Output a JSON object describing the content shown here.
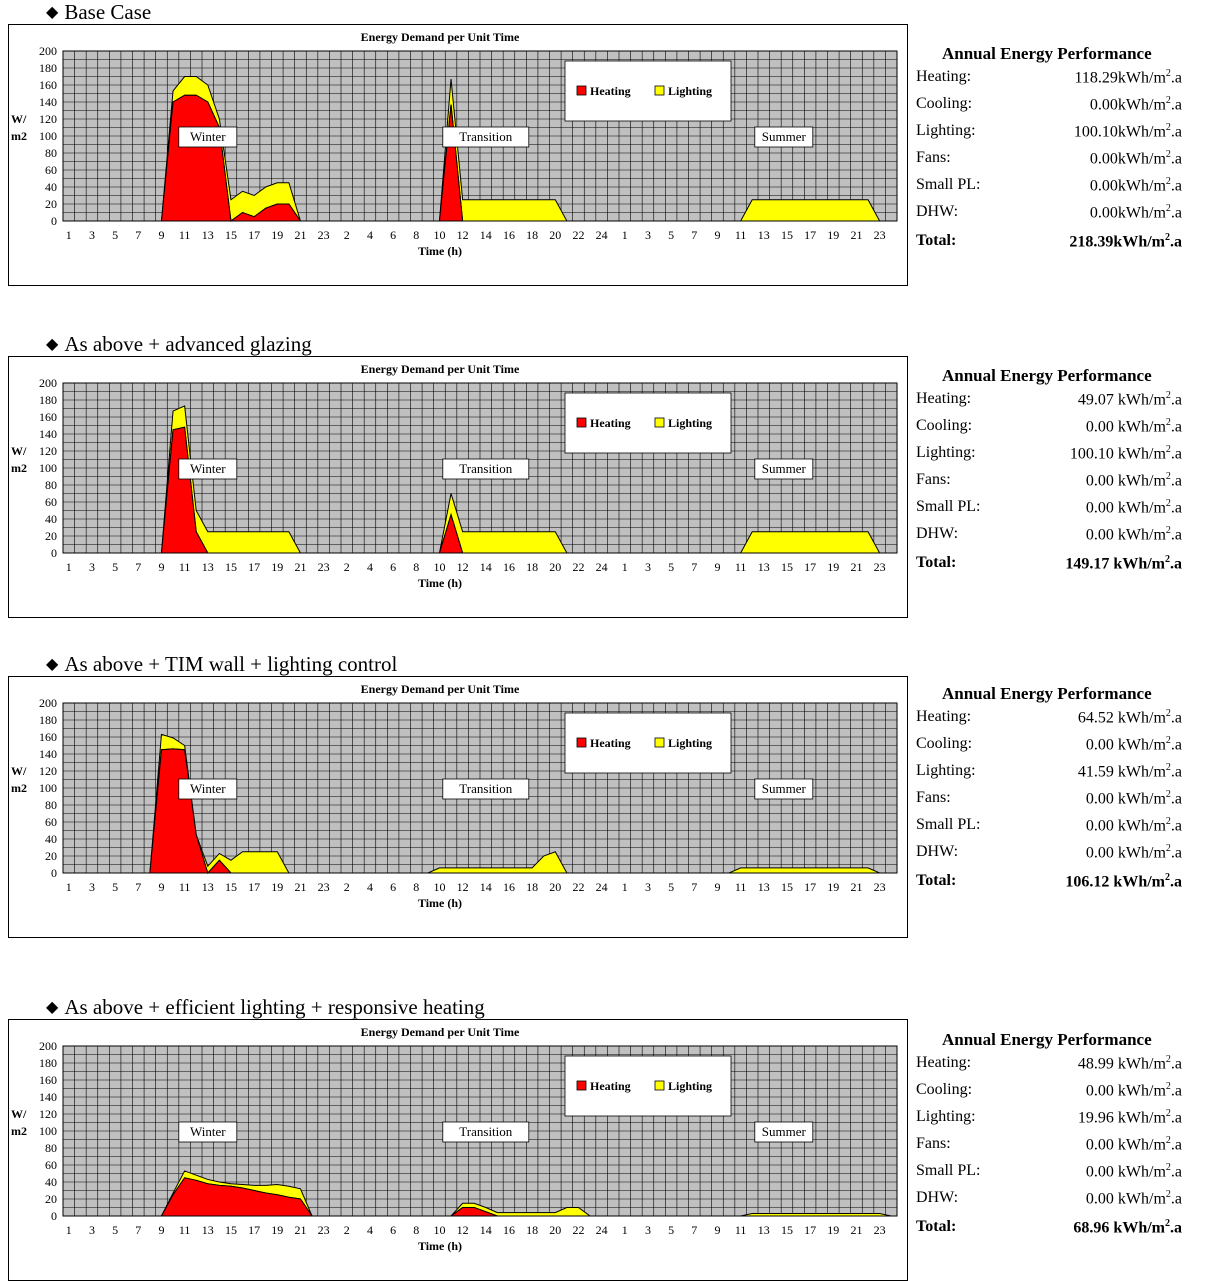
{
  "sections": [
    {
      "heading": "Base Case",
      "perf_title": "Annual Energy Performance",
      "perf": [
        {
          "label": "Heating:",
          "value": "118.29kWh/m",
          "unit_tail": ".a"
        },
        {
          "label": "Cooling:",
          "value": "0.00kWh/m",
          "unit_tail": ".a"
        },
        {
          "label": "Lighting:",
          "value": "100.10kWh/m",
          "unit_tail": ".a"
        },
        {
          "label": "Fans:",
          "value": "0.00kWh/m",
          "unit_tail": ".a"
        },
        {
          "label": "Small PL:",
          "value": "0.00kWh/m",
          "unit_tail": ".a"
        },
        {
          "label": "DHW:",
          "value": "0.00kWh/m",
          "unit_tail": ".a"
        },
        {
          "label": "Total:",
          "value": "218.39kWh/m",
          "unit_tail": ".a",
          "total": true
        }
      ]
    },
    {
      "heading": "As above + advanced glazing",
      "perf_title": "Annual Energy Performance",
      "perf": [
        {
          "label": "Heating:",
          "value": "49.07 kWh/m",
          "unit_tail": ".a"
        },
        {
          "label": "Cooling:",
          "value": "0.00 kWh/m",
          "unit_tail": ".a"
        },
        {
          "label": "Lighting:",
          "value": "100.10 kWh/m",
          "unit_tail": ".a"
        },
        {
          "label": "Fans:",
          "value": "0.00 kWh/m",
          "unit_tail": ".a"
        },
        {
          "label": "Small PL:",
          "value": "0.00 kWh/m",
          "unit_tail": ".a"
        },
        {
          "label": "DHW:",
          "value": "0.00 kWh/m",
          "unit_tail": ".a"
        },
        {
          "label": "Total:",
          "value": "149.17 kWh/m",
          "unit_tail": ".a",
          "total": true
        }
      ]
    },
    {
      "heading": "As above + TIM wall + lighting control",
      "perf_title": "Annual Energy Performance",
      "perf": [
        {
          "label": "Heating:",
          "value": "64.52 kWh/m",
          "unit_tail": ".a"
        },
        {
          "label": "Cooling:",
          "value": "0.00 kWh/m",
          "unit_tail": ".a"
        },
        {
          "label": "Lighting:",
          "value": "41.59 kWh/m",
          "unit_tail": ".a"
        },
        {
          "label": "Fans:",
          "value": "0.00 kWh/m",
          "unit_tail": ".a"
        },
        {
          "label": "Small PL:",
          "value": "0.00 kWh/m",
          "unit_tail": ".a"
        },
        {
          "label": "DHW:",
          "value": "0.00 kWh/m",
          "unit_tail": ".a"
        },
        {
          "label": "Total:",
          "value": "106.12 kWh/m",
          "unit_tail": ".a",
          "total": true
        }
      ]
    },
    {
      "heading": "As above + efficient lighting + responsive heating",
      "perf_title": "Annual Energy Performance",
      "perf": [
        {
          "label": "Heating:",
          "value": "48.99 kWh/m",
          "unit_tail": ".a"
        },
        {
          "label": "Cooling:",
          "value": "0.00 kWh/m",
          "unit_tail": ".a"
        },
        {
          "label": "Lighting:",
          "value": "19.96 kWh/m",
          "unit_tail": ".a"
        },
        {
          "label": "Fans:",
          "value": "0.00 kWh/m",
          "unit_tail": ".a"
        },
        {
          "label": "Small PL:",
          "value": "0.00 kWh/m",
          "unit_tail": ".a"
        },
        {
          "label": "DHW:",
          "value": "0.00 kWh/m",
          "unit_tail": ".a"
        },
        {
          "label": "Total:",
          "value": "68.96 kWh/m",
          "unit_tail": ".a",
          "total": true
        }
      ]
    }
  ],
  "chart_data": [
    {
      "type": "area",
      "title": "Energy Demand per Unit Time",
      "xlabel": "Time (h)",
      "ylabel": "W/m2",
      "ylim": [
        0,
        200
      ],
      "yticks": [
        0,
        20,
        40,
        60,
        80,
        100,
        120,
        140,
        160,
        180,
        200
      ],
      "xtick_labels": [
        "1",
        "3",
        "5",
        "7",
        "9",
        "11",
        "13",
        "15",
        "17",
        "19",
        "21",
        "23",
        "2",
        "4",
        "6",
        "8",
        "10",
        "12",
        "14",
        "16",
        "18",
        "20",
        "22",
        "24",
        "1",
        "3",
        "5",
        "7",
        "9",
        "11",
        "13",
        "15",
        "17",
        "19",
        "21",
        "23"
      ],
      "period_labels": [
        "Winter",
        "Transition",
        "Summer"
      ],
      "legend": [
        "Heating",
        "Lighting"
      ],
      "colors": {
        "Heating": "#ff0000",
        "Lighting": "#ffff00",
        "plot_bg": "#c0c0c0"
      },
      "grid": true,
      "legend_position": "top-right",
      "stacked": true,
      "series": [
        {
          "name": "Heating",
          "values": [
            0,
            0,
            0,
            0,
            0,
            0,
            0,
            0,
            0,
            140,
            148,
            148,
            140,
            110,
            0,
            10,
            5,
            15,
            20,
            20,
            0,
            0,
            0,
            0,
            0,
            0,
            0,
            0,
            0,
            0,
            0,
            0,
            0,
            137,
            0,
            0,
            0,
            0,
            0,
            0,
            0,
            0,
            0,
            0,
            0,
            0,
            0,
            0,
            0,
            0,
            0,
            0,
            0,
            0,
            0,
            0,
            0,
            0,
            0,
            0,
            0,
            0,
            0,
            0,
            0,
            0,
            0,
            0,
            0,
            0,
            0,
            0
          ]
        },
        {
          "name": "Lighting",
          "values": [
            0,
            0,
            0,
            0,
            0,
            0,
            0,
            0,
            0,
            13,
            22,
            22,
            20,
            10,
            25,
            25,
            25,
            25,
            25,
            25,
            0,
            0,
            0,
            0,
            0,
            0,
            0,
            0,
            0,
            0,
            0,
            0,
            0,
            30,
            25,
            25,
            25,
            25,
            25,
            25,
            25,
            25,
            25,
            0,
            0,
            0,
            0,
            0,
            0,
            0,
            0,
            0,
            0,
            0,
            0,
            0,
            0,
            0,
            0,
            25,
            25,
            25,
            25,
            25,
            25,
            25,
            25,
            25,
            25,
            25,
            0,
            0
          ]
        }
      ]
    },
    {
      "type": "area",
      "title": "Energy Demand per Unit Time",
      "xlabel": "Time (h)",
      "ylabel": "W/m2",
      "ylim": [
        0,
        200
      ],
      "yticks": [
        0,
        20,
        40,
        60,
        80,
        100,
        120,
        140,
        160,
        180,
        200
      ],
      "xtick_labels": [
        "1",
        "3",
        "5",
        "7",
        "9",
        "11",
        "13",
        "15",
        "17",
        "19",
        "21",
        "23",
        "2",
        "4",
        "6",
        "8",
        "10",
        "12",
        "14",
        "16",
        "18",
        "20",
        "22",
        "24",
        "1",
        "3",
        "5",
        "7",
        "9",
        "11",
        "13",
        "15",
        "17",
        "19",
        "21",
        "23"
      ],
      "period_labels": [
        "Winter",
        "Transition",
        "Summer"
      ],
      "legend": [
        "Heating",
        "Lighting"
      ],
      "colors": {
        "Heating": "#ff0000",
        "Lighting": "#ffff00",
        "plot_bg": "#c0c0c0"
      },
      "grid": true,
      "legend_position": "top-right",
      "stacked": true,
      "series": [
        {
          "name": "Heating",
          "values": [
            0,
            0,
            0,
            0,
            0,
            0,
            0,
            0,
            0,
            145,
            148,
            25,
            0,
            0,
            0,
            0,
            0,
            0,
            0,
            0,
            0,
            0,
            0,
            0,
            0,
            0,
            0,
            0,
            0,
            0,
            0,
            0,
            0,
            45,
            0,
            0,
            0,
            0,
            0,
            0,
            0,
            0,
            0,
            0,
            0,
            0,
            0,
            0,
            0,
            0,
            0,
            0,
            0,
            0,
            0,
            0,
            0,
            0,
            0,
            0,
            0,
            0,
            0,
            0,
            0,
            0,
            0,
            0,
            0,
            0,
            0,
            0
          ]
        },
        {
          "name": "Lighting",
          "values": [
            0,
            0,
            0,
            0,
            0,
            0,
            0,
            0,
            0,
            22,
            25,
            25,
            25,
            25,
            25,
            25,
            25,
            25,
            25,
            25,
            0,
            0,
            0,
            0,
            0,
            0,
            0,
            0,
            0,
            0,
            0,
            0,
            0,
            25,
            25,
            25,
            25,
            25,
            25,
            25,
            25,
            25,
            25,
            0,
            0,
            0,
            0,
            0,
            0,
            0,
            0,
            0,
            0,
            0,
            0,
            0,
            0,
            0,
            0,
            25,
            25,
            25,
            25,
            25,
            25,
            25,
            25,
            25,
            25,
            25,
            0,
            0
          ]
        }
      ]
    },
    {
      "type": "area",
      "title": "Energy Demand per Unit Time",
      "xlabel": "Time (h)",
      "ylabel": "W/m2",
      "ylim": [
        0,
        200
      ],
      "yticks": [
        0,
        20,
        40,
        60,
        80,
        100,
        120,
        140,
        160,
        180,
        200
      ],
      "xtick_labels": [
        "1",
        "3",
        "5",
        "7",
        "9",
        "11",
        "13",
        "15",
        "17",
        "19",
        "21",
        "23",
        "2",
        "4",
        "6",
        "8",
        "10",
        "12",
        "14",
        "16",
        "18",
        "20",
        "22",
        "24",
        "1",
        "3",
        "5",
        "7",
        "9",
        "11",
        "13",
        "15",
        "17",
        "19",
        "21",
        "23"
      ],
      "period_labels": [
        "Winter",
        "Transition",
        "Summer"
      ],
      "legend": [
        "Heating",
        "Lighting"
      ],
      "colors": {
        "Heating": "#ff0000",
        "Lighting": "#ffff00",
        "plot_bg": "#c0c0c0"
      },
      "grid": true,
      "legend_position": "top-right",
      "stacked": true,
      "series": [
        {
          "name": "Heating",
          "values": [
            0,
            0,
            0,
            0,
            0,
            0,
            0,
            0,
            145,
            146,
            145,
            45,
            0,
            15,
            0,
            0,
            0,
            0,
            0,
            0,
            0,
            0,
            0,
            0,
            0,
            0,
            0,
            0,
            0,
            0,
            0,
            0,
            0,
            0,
            0,
            0,
            0,
            0,
            0,
            0,
            0,
            0,
            0,
            0,
            0,
            0,
            0,
            0,
            0,
            0,
            0,
            0,
            0,
            0,
            0,
            0,
            0,
            0,
            0,
            0,
            0,
            0,
            0,
            0,
            0,
            0,
            0,
            0,
            0,
            0,
            0,
            0
          ]
        },
        {
          "name": "Lighting",
          "values": [
            0,
            0,
            0,
            0,
            0,
            0,
            0,
            0,
            18,
            13,
            5,
            0,
            8,
            8,
            15,
            25,
            25,
            25,
            25,
            0,
            0,
            0,
            0,
            0,
            0,
            0,
            0,
            0,
            0,
            0,
            0,
            0,
            6,
            6,
            6,
            6,
            6,
            6,
            6,
            6,
            6,
            20,
            25,
            0,
            0,
            0,
            0,
            0,
            0,
            0,
            0,
            0,
            0,
            0,
            0,
            0,
            0,
            0,
            6,
            6,
            6,
            6,
            6,
            6,
            6,
            6,
            6,
            6,
            6,
            6,
            0,
            0
          ]
        }
      ]
    },
    {
      "type": "area",
      "title": "Energy Demand per Unit Time",
      "xlabel": "Time (h)",
      "ylabel": "W/m2",
      "ylim": [
        0,
        200
      ],
      "yticks": [
        0,
        20,
        40,
        60,
        80,
        100,
        120,
        140,
        160,
        180,
        200
      ],
      "xtick_labels": [
        "1",
        "3",
        "5",
        "7",
        "9",
        "11",
        "13",
        "15",
        "17",
        "19",
        "21",
        "23",
        "2",
        "4",
        "6",
        "8",
        "10",
        "12",
        "14",
        "16",
        "18",
        "20",
        "22",
        "24",
        "1",
        "3",
        "5",
        "7",
        "9",
        "11",
        "13",
        "15",
        "17",
        "19",
        "21",
        "23"
      ],
      "period_labels": [
        "Winter",
        "Transition",
        "Summer"
      ],
      "legend": [
        "Heating",
        "Lighting"
      ],
      "colors": {
        "Heating": "#ff0000",
        "Lighting": "#ffff00",
        "plot_bg": "#c0c0c0"
      },
      "grid": true,
      "legend_position": "top-right",
      "stacked": true,
      "series": [
        {
          "name": "Heating",
          "values": [
            0,
            0,
            0,
            0,
            0,
            0,
            0,
            0,
            0,
            25,
            45,
            42,
            38,
            36,
            35,
            33,
            30,
            27,
            25,
            22,
            20,
            0,
            0,
            0,
            0,
            0,
            0,
            0,
            0,
            0,
            0,
            0,
            0,
            0,
            10,
            10,
            5,
            0,
            0,
            0,
            0,
            0,
            0,
            0,
            0,
            0,
            0,
            0,
            0,
            0,
            0,
            0,
            0,
            0,
            0,
            0,
            0,
            0,
            0,
            0,
            0,
            0,
            0,
            0,
            0,
            0,
            0,
            0,
            0,
            0,
            0,
            0
          ]
        },
        {
          "name": "Lighting",
          "values": [
            0,
            0,
            0,
            0,
            0,
            0,
            0,
            0,
            0,
            2,
            8,
            6,
            5,
            4,
            3,
            4,
            6,
            9,
            12,
            13,
            12,
            0,
            0,
            0,
            0,
            0,
            0,
            0,
            0,
            0,
            0,
            0,
            0,
            0,
            5,
            5,
            5,
            4,
            4,
            4,
            4,
            4,
            4,
            10,
            10,
            0,
            0,
            0,
            0,
            0,
            0,
            0,
            0,
            0,
            0,
            0,
            0,
            0,
            0,
            3,
            3,
            3,
            3,
            3,
            3,
            3,
            3,
            3,
            3,
            3,
            3,
            0
          ]
        }
      ]
    }
  ]
}
